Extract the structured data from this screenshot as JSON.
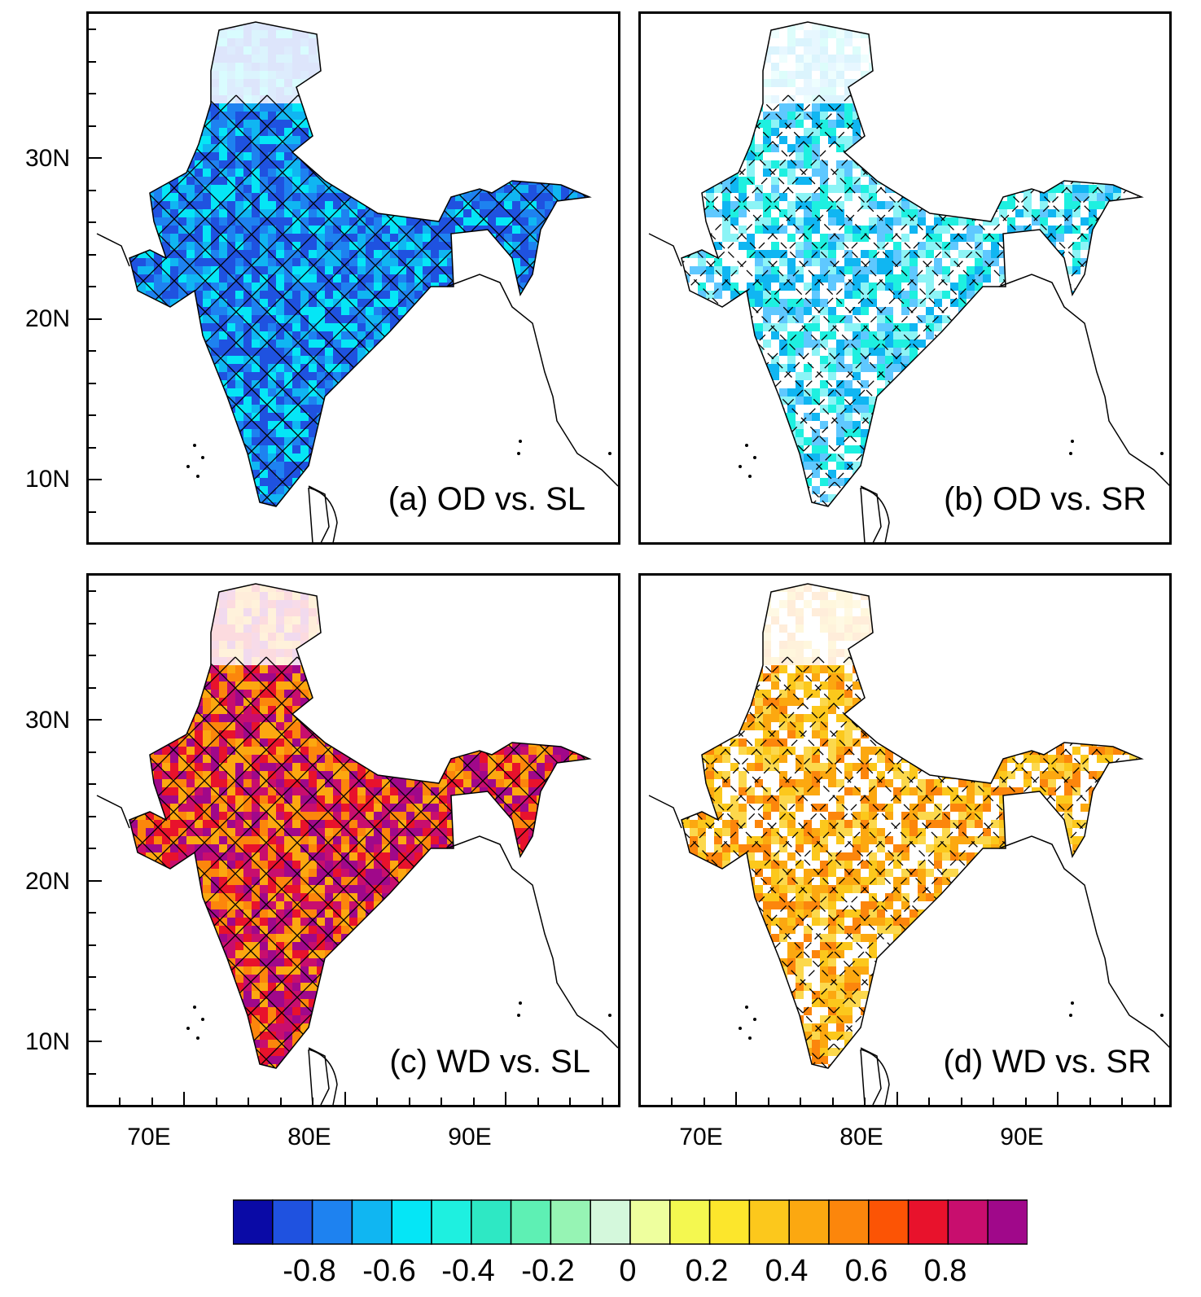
{
  "panels": [
    {
      "id": "a",
      "label": "(a) OD vs. SL",
      "scheme": "blue-strong"
    },
    {
      "id": "b",
      "label": "(b) OD vs. SR",
      "scheme": "blue-weak"
    },
    {
      "id": "c",
      "label": "(c) WD vs. SL",
      "scheme": "red-strong"
    },
    {
      "id": "d",
      "label": "(d) WD vs. SR",
      "scheme": "red-weak"
    }
  ],
  "lat_labels": [
    "30N",
    "20N",
    "10N"
  ],
  "lon_labels": [
    "70E",
    "80E",
    "90E"
  ],
  "colorbar": {
    "colors": [
      "#0a0aa6",
      "#1f52e0",
      "#1e82f0",
      "#10b6f2",
      "#05e6f6",
      "#1ef0e0",
      "#2ee8c4",
      "#5ef0b4",
      "#96f4b4",
      "#d4f8dc",
      "#eeff9e",
      "#f4f850",
      "#fce62c",
      "#fcc81c",
      "#fca810",
      "#fc860c",
      "#fc5405",
      "#e8122c",
      "#c80e6e",
      "#a0088a"
    ],
    "labels": [
      "-0.8",
      "-0.6",
      "-0.4",
      "-0.2",
      "0",
      "0.2",
      "0.4",
      "0.6",
      "0.8"
    ]
  }
}
